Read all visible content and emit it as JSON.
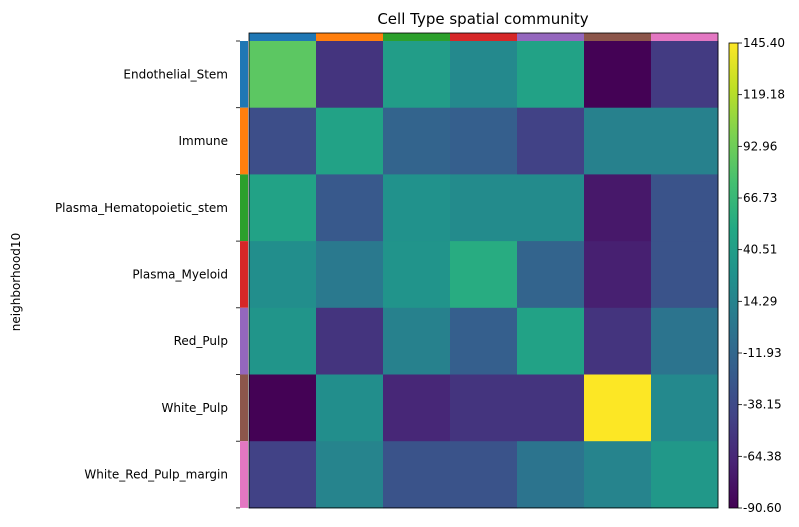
{
  "chart_data": {
    "type": "heatmap",
    "title": "Cell Type spatial community",
    "ylabel": "neighborhood10",
    "xlabel": "",
    "rows": [
      "Endothelial_Stem",
      "Immune",
      "Plasma_Hematopoietic_stem",
      "Plasma_Myeloid",
      "Red_Pulp",
      "White_Pulp",
      "White_Red_Pulp_margin"
    ],
    "column_category_colors": [
      "#1f77b4",
      "#ff7f0e",
      "#2ca02c",
      "#d62728",
      "#9467bd",
      "#8c564b",
      "#e377c2"
    ],
    "row_category_colors": [
      "#1f77b4",
      "#ff7f0e",
      "#2ca02c",
      "#d62728",
      "#9467bd",
      "#8c564b",
      "#e377c2"
    ],
    "values": [
      [
        85,
        -55,
        40,
        20,
        45,
        -90,
        -50
      ],
      [
        -35,
        45,
        -15,
        -20,
        -45,
        12,
        12
      ],
      [
        45,
        -25,
        28,
        22,
        22,
        -75,
        -30
      ],
      [
        25,
        5,
        30,
        55,
        -15,
        -70,
        -30
      ],
      [
        32,
        -55,
        12,
        -20,
        45,
        -55,
        0
      ],
      [
        -90,
        25,
        -65,
        -55,
        -55,
        145,
        20
      ],
      [
        -45,
        15,
        -30,
        -30,
        0,
        15,
        35
      ]
    ],
    "colorbar": {
      "min": -90.6,
      "max": 145.4,
      "ticks": [
        "145.40",
        "119.18",
        "92.96",
        "66.73",
        "40.51",
        "14.29",
        "-11.93",
        "-38.15",
        "-64.38",
        "-90.60"
      ]
    },
    "colormap": "viridis"
  }
}
